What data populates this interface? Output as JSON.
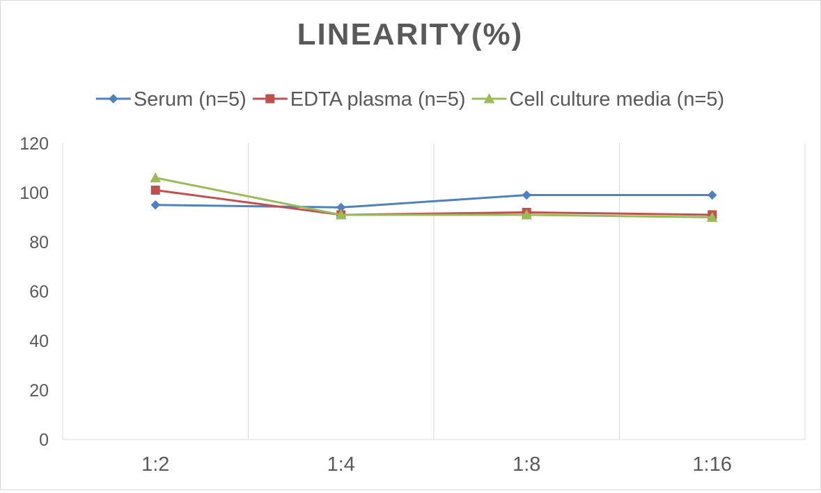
{
  "chart_data": {
    "type": "line",
    "title": "LINEARITY(%)",
    "xlabel": "",
    "ylabel": "",
    "categories": [
      "1:2",
      "1:4",
      "1:8",
      "1:16"
    ],
    "ylim": [
      0,
      120
    ],
    "yticks": [
      0,
      20,
      40,
      60,
      80,
      100,
      120
    ],
    "y_tick_labels": [
      "0",
      "20",
      "40",
      "60",
      "80",
      "100",
      "120"
    ],
    "grid": "vertical",
    "legend_position": "top",
    "series": [
      {
        "name": "Serum (n=5)",
        "values": [
          95,
          94,
          99,
          99
        ],
        "color": "#4f81bd",
        "marker": "diamond"
      },
      {
        "name": "EDTA plasma (n=5)",
        "values": [
          101,
          91,
          92,
          91
        ],
        "color": "#c0504d",
        "marker": "square"
      },
      {
        "name": "Cell culture media (n=5)",
        "values": [
          106,
          91,
          91,
          90
        ],
        "color": "#9bbb59",
        "marker": "triangle"
      }
    ]
  }
}
